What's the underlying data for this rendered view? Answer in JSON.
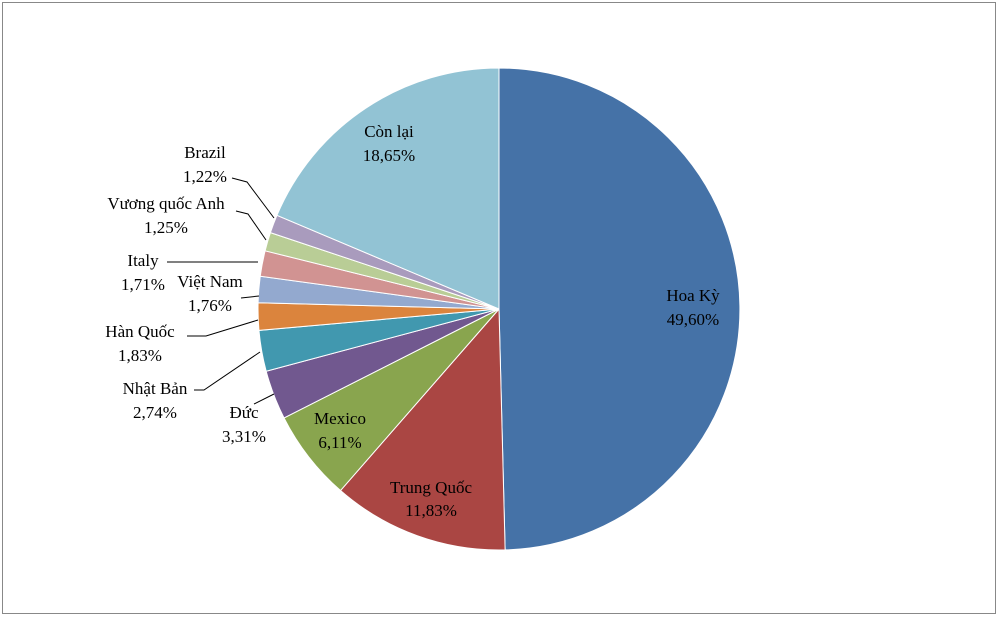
{
  "chart_data": {
    "type": "pie",
    "slices": [
      {
        "label": "Hoa Kỳ",
        "value_text": "49,60%",
        "value": 49.6,
        "color": "#4572A7"
      },
      {
        "label": "Trung Quốc",
        "value_text": "11,83%",
        "value": 11.83,
        "color": "#AA4643"
      },
      {
        "label": "Mexico",
        "value_text": "6,11%",
        "value": 6.11,
        "color": "#89A54E"
      },
      {
        "label": "Đức",
        "value_text": "3,31%",
        "value": 3.31,
        "color": "#71588F"
      },
      {
        "label": "Nhật Bản",
        "value_text": "2,74%",
        "value": 2.74,
        "color": "#4198AF"
      },
      {
        "label": "Hàn Quốc",
        "value_text": "1,83%",
        "value": 1.83,
        "color": "#DB843D"
      },
      {
        "label": "Việt Nam",
        "value_text": "1,76%",
        "value": 1.76,
        "color": "#93A9CF"
      },
      {
        "label": "Italy",
        "value_text": "1,71%",
        "value": 1.71,
        "color": "#D19392"
      },
      {
        "label": "Vương quốc Anh",
        "value_text": "1,25%",
        "value": 1.25,
        "color": "#B9CD96"
      },
      {
        "label": "Brazil",
        "value_text": "1,22%",
        "value": 1.22,
        "color": "#A99BBD"
      },
      {
        "label": "Còn lại",
        "value_text": "18,65%",
        "value": 18.65,
        "color": "#92C3D4"
      }
    ]
  }
}
